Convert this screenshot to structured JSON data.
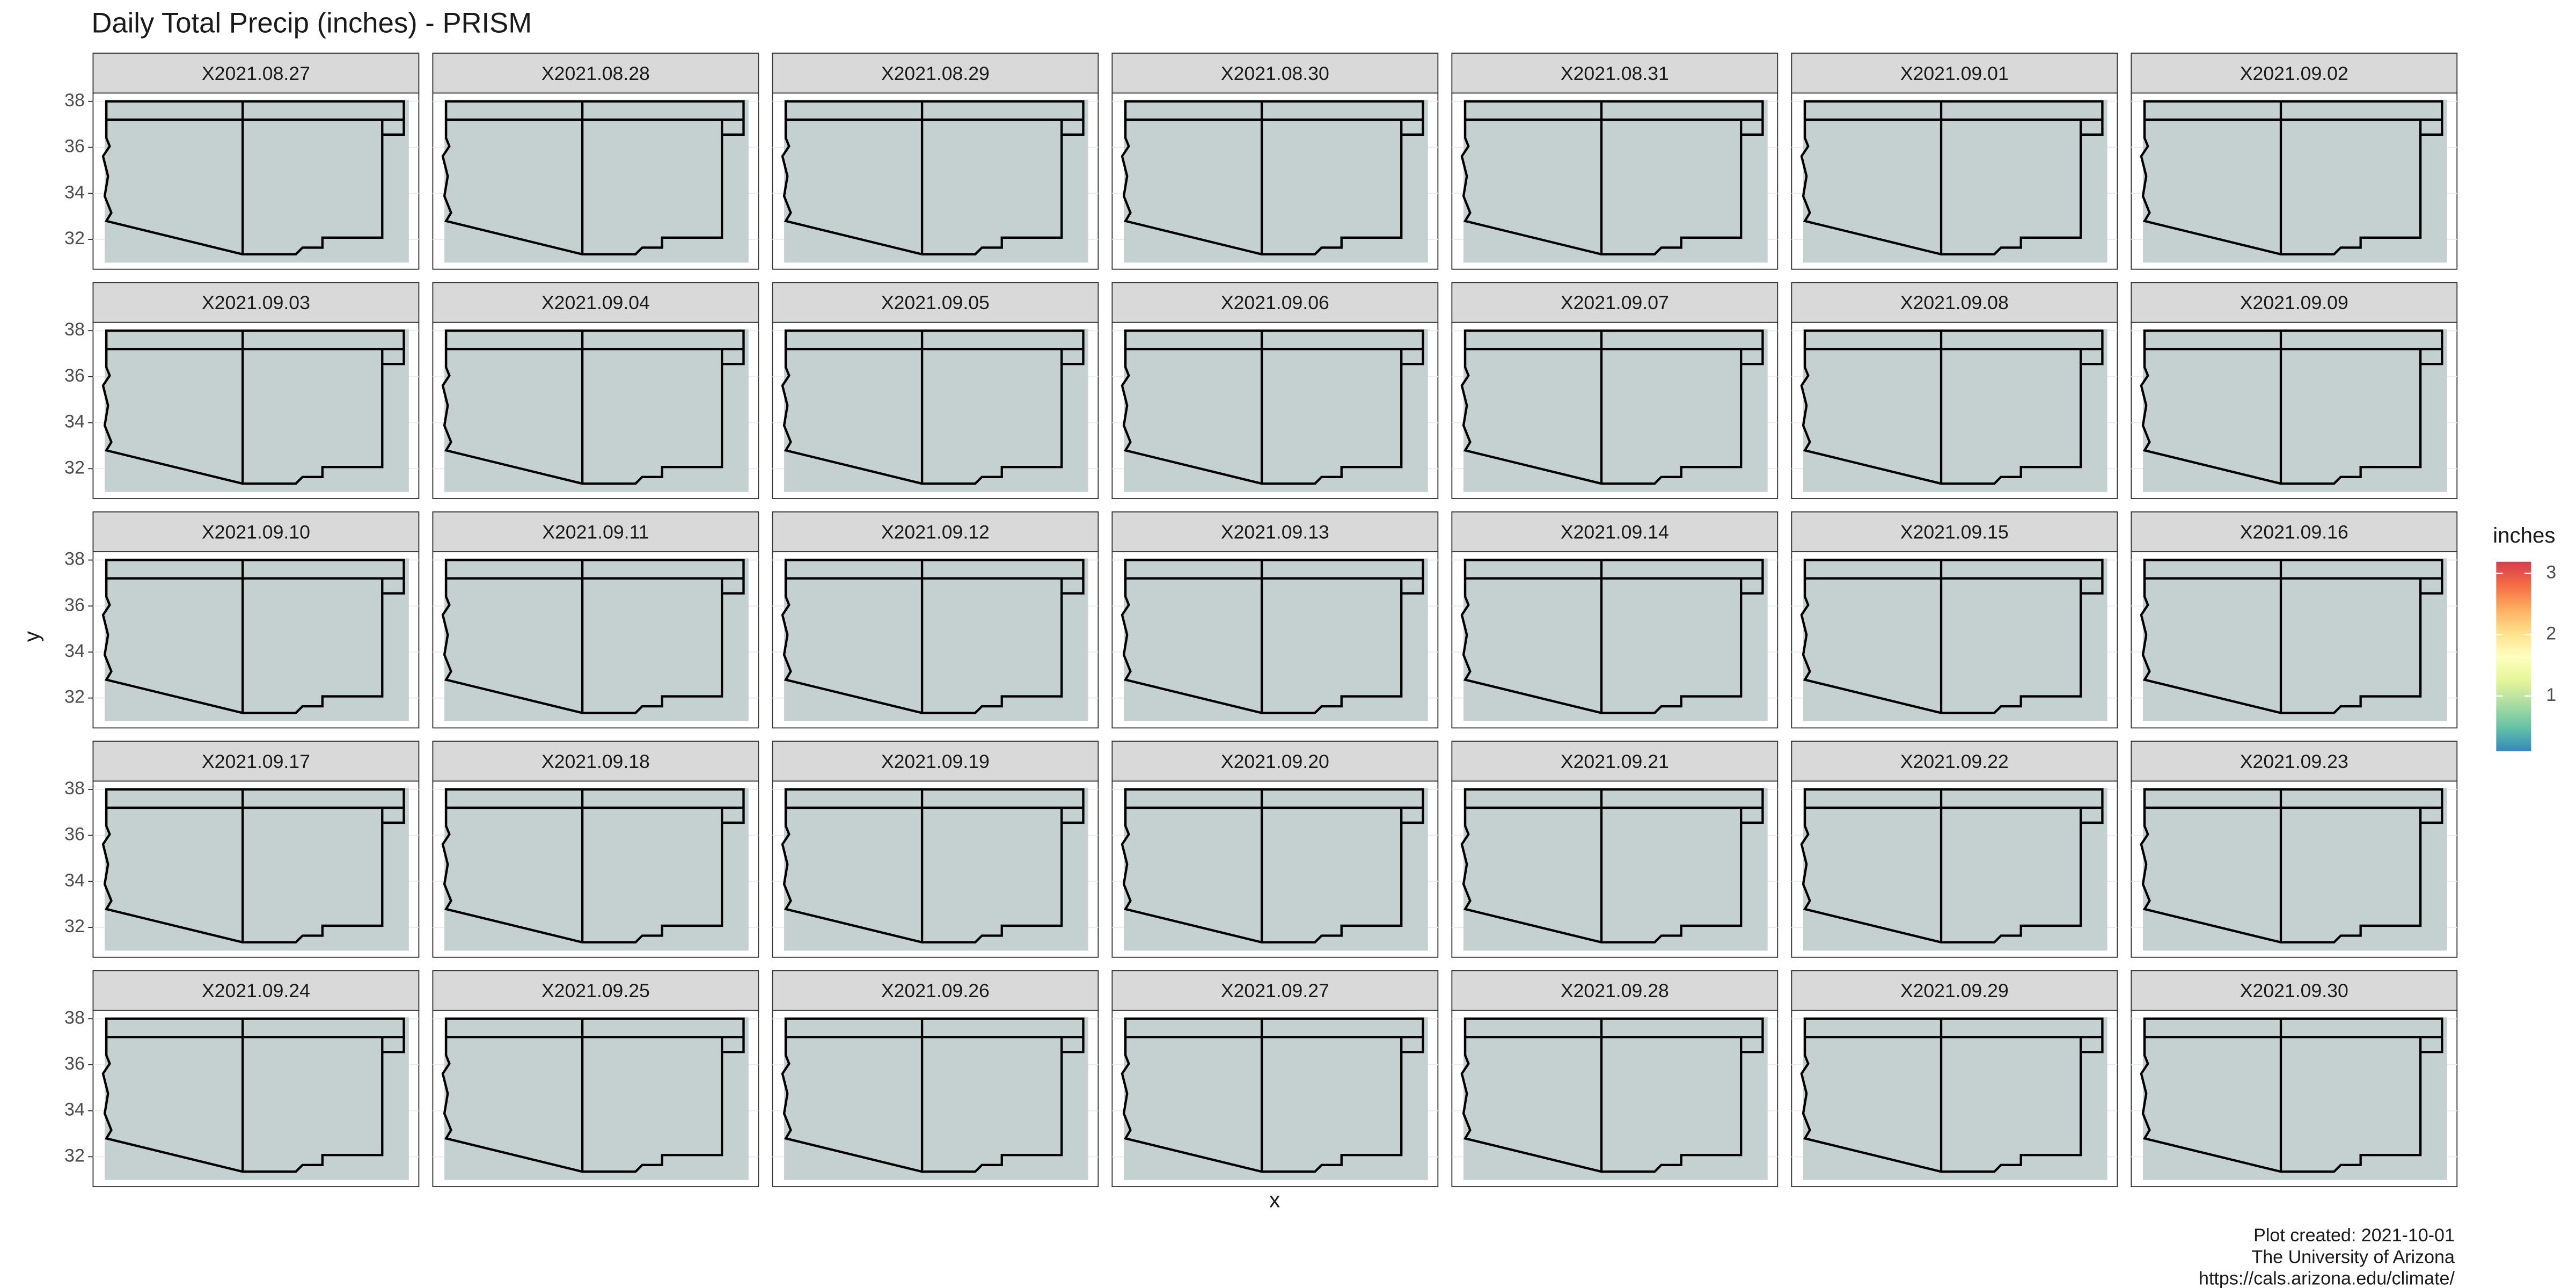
{
  "chart_data": {
    "type": "facet-map",
    "title": "Daily Total Precip (inches) - PRISM",
    "x_label": "x",
    "y_label": "y",
    "ylim": [
      30.7,
      38.36
    ],
    "yticks": [
      32,
      34,
      36,
      38
    ],
    "grid": true,
    "facets": [
      "X2021.08.27",
      "X2021.08.28",
      "X2021.08.29",
      "X2021.08.30",
      "X2021.08.31",
      "X2021.09.01",
      "X2021.09.02",
      "X2021.09.03",
      "X2021.09.04",
      "X2021.09.05",
      "X2021.09.06",
      "X2021.09.07",
      "X2021.09.08",
      "X2021.09.09",
      "X2021.09.10",
      "X2021.09.11",
      "X2021.09.12",
      "X2021.09.13",
      "X2021.09.14",
      "X2021.09.15",
      "X2021.09.16",
      "X2021.09.17",
      "X2021.09.18",
      "X2021.09.19",
      "X2021.09.20",
      "X2021.09.21",
      "X2021.09.22",
      "X2021.09.23",
      "X2021.09.24",
      "X2021.09.25",
      "X2021.09.26",
      "X2021.09.27",
      "X2021.09.28",
      "X2021.09.29",
      "X2021.09.30"
    ],
    "legend": {
      "title": "inches",
      "lim": [
        0.1,
        3.19
      ],
      "ticks": [
        1,
        2,
        3
      ],
      "colors": [
        "#3288bd",
        "#66c2a5",
        "#abdda4",
        "#e6f598",
        "#ffffbf",
        "#fee08b",
        "#fdae61",
        "#f46d43",
        "#d53e4f"
      ]
    },
    "caption": [
      "Plot created: 2021-10-01",
      "The University of Arizona",
      "https://cals.arizona.edu/climate/"
    ]
  }
}
